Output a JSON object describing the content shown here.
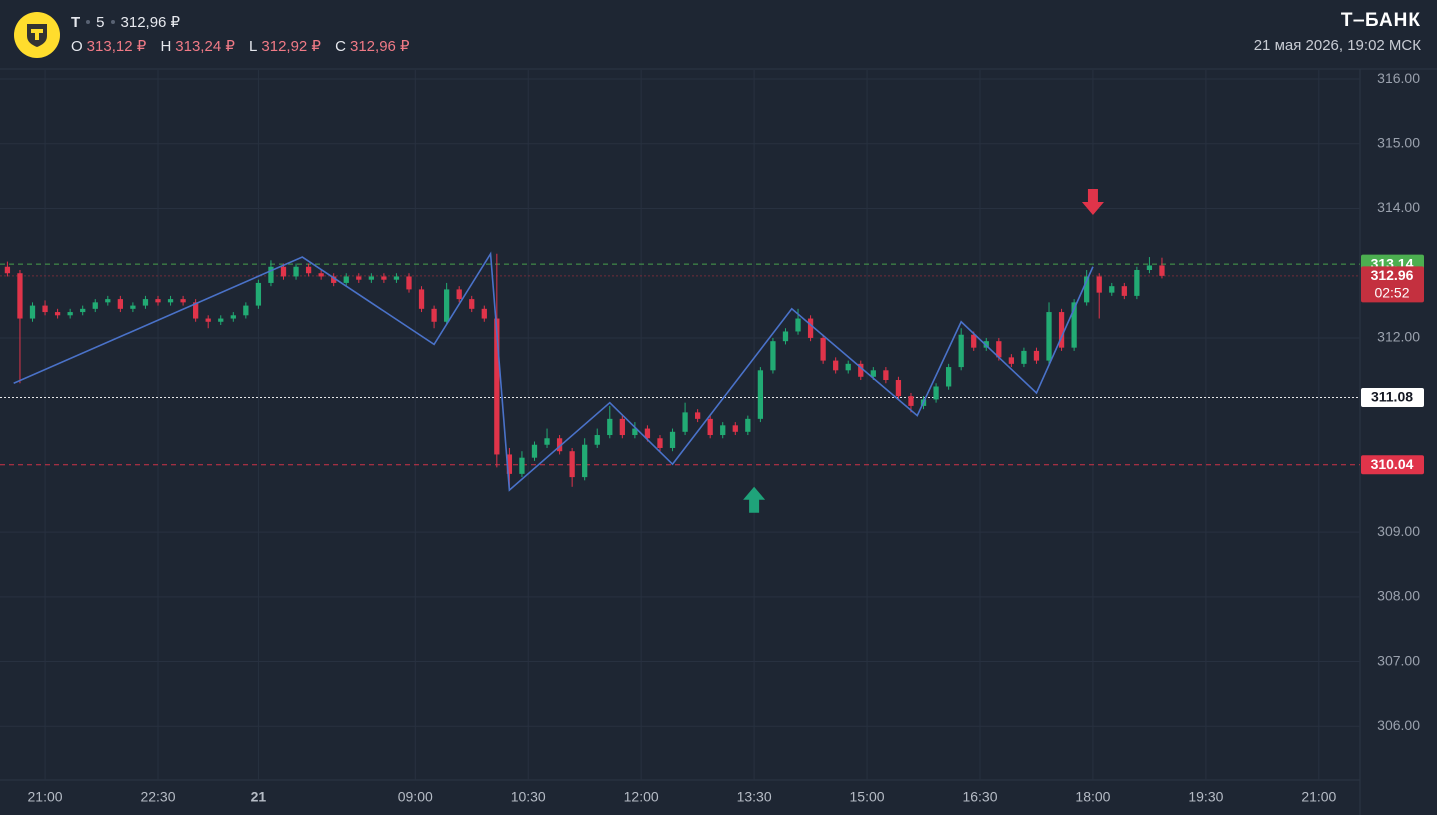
{
  "header": {
    "ticker": "T",
    "interval": "5",
    "price": "312,96 ₽",
    "ohlc": [
      {
        "label": "O",
        "value": "313,12 ₽"
      },
      {
        "label": "H",
        "value": "313,24 ₽"
      },
      {
        "label": "L",
        "value": "312,92 ₽"
      },
      {
        "label": "C",
        "value": "312,96 ₽"
      }
    ],
    "brand": "Т‒БАНК",
    "datetime": "21 мая 2026, 19:02 МСК"
  },
  "chart_data": {
    "type": "candlestick",
    "up_color": "#22ab74",
    "down_color": "#e0344a",
    "grid": true,
    "xlim": [
      -3.59,
      104.78
    ],
    "ylim": [
      305.17,
      316.14
    ],
    "xticks": [
      {
        "value": 0,
        "label": "21:00"
      },
      {
        "value": 9,
        "label": "22:30"
      },
      {
        "value": 17,
        "label": "21"
      },
      {
        "value": 29.5,
        "label": "09:00"
      },
      {
        "value": 38.5,
        "label": "10:30"
      },
      {
        "value": 47.5,
        "label": "12:00"
      },
      {
        "value": 56.5,
        "label": "13:30"
      },
      {
        "value": 65.5,
        "label": "15:00"
      },
      {
        "value": 74.5,
        "label": "16:30"
      },
      {
        "value": 83.5,
        "label": "18:00"
      },
      {
        "value": 92.5,
        "label": "19:30"
      },
      {
        "value": 101.5,
        "label": "21:00"
      }
    ],
    "yticks": [
      {
        "value": 306,
        "label": "306.00"
      },
      {
        "value": 307,
        "label": "307.00"
      },
      {
        "value": 308,
        "label": "308.00"
      },
      {
        "value": 309,
        "label": "309.00"
      },
      {
        "value": 312,
        "label": "312.00"
      },
      {
        "value": 314,
        "label": "314.00"
      },
      {
        "value": 315,
        "label": "315.00"
      },
      {
        "value": 316,
        "label": "316.00"
      }
    ],
    "x": [
      -3,
      -2,
      -1,
      0,
      1,
      2,
      3,
      4,
      5,
      6,
      7,
      8,
      9,
      10,
      11,
      12,
      13,
      14,
      15,
      16,
      17,
      18,
      19,
      20,
      21,
      22,
      23,
      24,
      25,
      26,
      27,
      28,
      29,
      30,
      31,
      32,
      33,
      34,
      35,
      36,
      37,
      38,
      39,
      40,
      41,
      42,
      43,
      44,
      45,
      46,
      47,
      48,
      49,
      50,
      51,
      52,
      53,
      54,
      55,
      56,
      57,
      58,
      59,
      60,
      61,
      62,
      63,
      64,
      65,
      66,
      67,
      68,
      69,
      70,
      71,
      72,
      73,
      74,
      75,
      76,
      77,
      78,
      79,
      80,
      81,
      82,
      83,
      84,
      85,
      86,
      87,
      88,
      89
    ],
    "open": [
      313.1,
      313.0,
      312.3,
      312.5,
      312.4,
      312.35,
      312.4,
      312.45,
      312.55,
      312.6,
      312.45,
      312.5,
      312.6,
      312.55,
      312.6,
      312.55,
      312.3,
      312.25,
      312.3,
      312.35,
      312.5,
      312.85,
      313.1,
      312.95,
      313.1,
      313.0,
      312.95,
      312.85,
      312.95,
      312.9,
      312.95,
      312.9,
      312.95,
      312.75,
      312.45,
      312.25,
      312.75,
      312.6,
      312.45,
      312.3,
      310.2,
      309.9,
      310.15,
      310.35,
      310.45,
      310.25,
      309.85,
      310.35,
      310.5,
      310.75,
      310.5,
      310.6,
      310.45,
      310.3,
      310.55,
      310.85,
      310.75,
      310.5,
      310.65,
      310.55,
      310.75,
      311.5,
      311.95,
      312.1,
      312.3,
      312.0,
      311.65,
      311.5,
      311.6,
      311.4,
      311.5,
      311.35,
      311.1,
      310.95,
      311.05,
      311.25,
      311.55,
      312.05,
      311.85,
      311.95,
      311.7,
      311.6,
      311.8,
      311.65,
      312.4,
      311.85,
      312.55,
      312.95,
      312.7,
      312.8,
      312.65,
      313.05,
      313.12
    ],
    "high": [
      313.18,
      313.05,
      312.55,
      312.58,
      312.45,
      312.45,
      312.5,
      312.6,
      312.65,
      312.65,
      312.55,
      312.65,
      312.65,
      312.65,
      312.65,
      312.6,
      312.35,
      312.35,
      312.4,
      312.55,
      312.9,
      313.2,
      313.15,
      313.15,
      313.15,
      313.05,
      313.0,
      313.0,
      313.0,
      313.0,
      313.0,
      313.0,
      313.0,
      312.8,
      312.5,
      312.85,
      312.8,
      312.65,
      312.5,
      313.3,
      310.3,
      310.25,
      310.4,
      310.6,
      310.5,
      310.3,
      310.45,
      310.6,
      310.95,
      310.8,
      310.7,
      310.65,
      310.5,
      310.6,
      311.0,
      310.9,
      310.8,
      310.7,
      310.7,
      310.8,
      311.55,
      312.0,
      312.15,
      312.45,
      312.35,
      312.05,
      311.7,
      311.65,
      311.65,
      311.55,
      311.55,
      311.4,
      311.15,
      311.1,
      311.3,
      311.6,
      312.15,
      312.1,
      312.0,
      312.0,
      311.75,
      311.85,
      311.85,
      312.55,
      312.45,
      312.6,
      313.05,
      313.0,
      312.85,
      312.85,
      313.1,
      313.25,
      313.24
    ],
    "low": [
      312.95,
      311.3,
      312.25,
      312.35,
      312.3,
      312.3,
      312.35,
      312.4,
      312.5,
      312.4,
      312.4,
      312.45,
      312.5,
      312.5,
      312.5,
      312.25,
      312.15,
      312.2,
      312.25,
      312.3,
      312.45,
      312.8,
      312.9,
      312.9,
      312.95,
      312.9,
      312.8,
      312.8,
      312.85,
      312.85,
      312.85,
      312.85,
      312.7,
      312.4,
      312.15,
      312.2,
      312.55,
      312.4,
      312.25,
      310.0,
      309.7,
      309.85,
      310.1,
      310.3,
      310.2,
      309.7,
      309.8,
      310.3,
      310.45,
      310.45,
      310.45,
      310.4,
      310.25,
      310.25,
      310.5,
      310.7,
      310.45,
      310.45,
      310.5,
      310.5,
      310.7,
      311.45,
      311.9,
      312.05,
      311.95,
      311.6,
      311.45,
      311.45,
      311.35,
      311.35,
      311.3,
      311.05,
      310.85,
      310.9,
      311.0,
      311.2,
      311.5,
      311.8,
      311.8,
      311.65,
      311.55,
      311.55,
      311.6,
      311.6,
      311.8,
      311.8,
      312.5,
      312.3,
      312.65,
      312.6,
      312.6,
      313.0,
      312.92
    ],
    "close": [
      313.0,
      312.3,
      312.5,
      312.4,
      312.35,
      312.4,
      312.45,
      312.55,
      312.6,
      312.45,
      312.5,
      312.6,
      312.55,
      312.6,
      312.55,
      312.3,
      312.25,
      312.3,
      312.35,
      312.5,
      312.85,
      313.1,
      312.95,
      313.1,
      313.0,
      312.95,
      312.85,
      312.95,
      312.9,
      312.95,
      312.9,
      312.95,
      312.75,
      312.45,
      312.25,
      312.75,
      312.6,
      312.45,
      312.3,
      310.2,
      309.9,
      310.15,
      310.35,
      310.45,
      310.25,
      309.85,
      310.35,
      310.5,
      310.75,
      310.5,
      310.6,
      310.45,
      310.3,
      310.55,
      310.85,
      310.75,
      310.5,
      310.65,
      310.55,
      310.75,
      311.5,
      311.95,
      312.1,
      312.3,
      312.0,
      311.65,
      311.5,
      311.6,
      311.4,
      311.5,
      311.35,
      311.1,
      310.95,
      311.05,
      311.25,
      311.55,
      312.05,
      311.85,
      311.95,
      311.7,
      311.6,
      311.8,
      311.65,
      312.4,
      311.85,
      312.55,
      312.95,
      312.7,
      312.8,
      312.65,
      313.05,
      313.12,
      312.96
    ],
    "zigzag": {
      "color": "#4a72c9",
      "x": [
        -2.5,
        20.5,
        31,
        35.5,
        37,
        45,
        50,
        59.5,
        69.5,
        73,
        79,
        83.5
      ],
      "values": [
        311.3,
        313.25,
        311.9,
        313.3,
        309.65,
        311.0,
        310.05,
        312.45,
        310.8,
        312.25,
        311.15,
        313.1
      ]
    },
    "price_lines": [
      {
        "value": 313.14,
        "color": "#4caf50",
        "text_color": "#ffffff",
        "style": "dashed"
      },
      {
        "value": 312.96,
        "color": "#c4303f",
        "text_color": "#ffffff",
        "style": "dotted",
        "countdown": "02:52"
      },
      {
        "value": 311.08,
        "color": "#ffffff",
        "text_color": "#131722",
        "style": "dotted"
      },
      {
        "value": 310.04,
        "color": "#e0344a",
        "text_color": "#ffffff",
        "style": "dashed"
      }
    ],
    "signals": [
      {
        "direction": "down",
        "x": 83.5,
        "y": 314.1,
        "color": "#e0344a"
      },
      {
        "direction": "up",
        "x": 56.5,
        "y": 309.5,
        "color": "#1fa37a"
      }
    ]
  }
}
